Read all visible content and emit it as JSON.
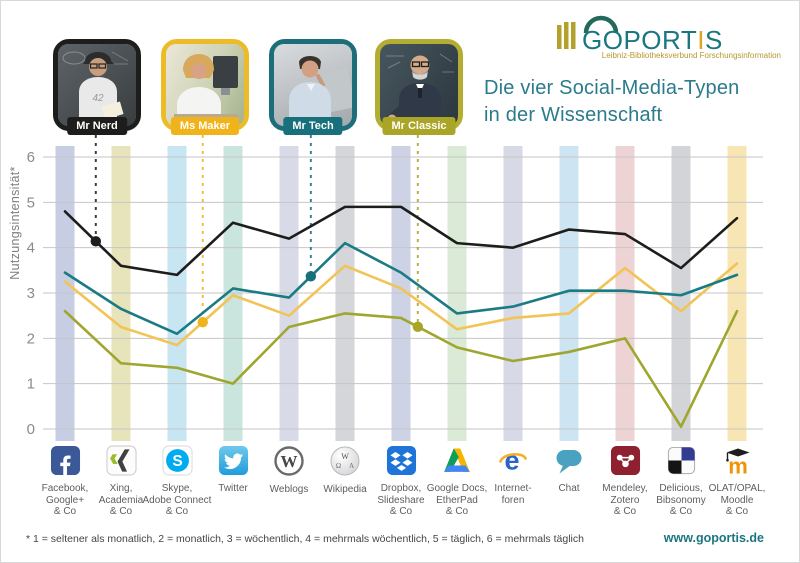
{
  "header": {
    "logo": {
      "text_pre": "GOPORT",
      "text_accent": "I",
      "text_post": "S",
      "subtitle": "Leibniz-Bibliotheksverbund Forschungsinformation",
      "teal": "#1a7680",
      "accent_yellow": "#dfa51d",
      "bar_color": "#b3a12c",
      "arc_color": "#23695c"
    },
    "title_line1": "Die vier Social-Media-Typen",
    "title_line2": "in der Wissenschaft",
    "personas": [
      {
        "name": "Mr Nerd",
        "color": "#1d1d1b",
        "frame_color": "#1d1d1b",
        "dot_x_index": 0.55
      },
      {
        "name": "Ms Maker",
        "color": "#f0b31c",
        "frame_color": "#ecbc28",
        "dot_x_index": 2.46
      },
      {
        "name": "Mr Tech",
        "color": "#17707b",
        "frame_color": "#1c6f7a",
        "dot_x_index": 4.39
      },
      {
        "name": "Mr Classic",
        "color": "#aaa526",
        "frame_color": "#b3ad31",
        "dot_x_index": 6.3
      }
    ]
  },
  "chart_data": {
    "type": "line",
    "title": "Die vier Social-Media-Typen in der Wissenschaft",
    "xlabel": "",
    "ylabel": "Nutzungsintensität*",
    "ylim": [
      0,
      6
    ],
    "yticks": [
      0,
      1,
      2,
      3,
      4,
      5,
      6
    ],
    "grid": true,
    "legend_position": "photo-tags-top",
    "categories": [
      {
        "name": "Facebook, Google+ & Co",
        "label_lines": [
          "Facebook,",
          "Google+",
          "& Co"
        ],
        "icon": "facebook",
        "band_color": "#c7cde2"
      },
      {
        "name": "Xing, Academia & Co",
        "label_lines": [
          "Xing,",
          "Academia",
          "& Co"
        ],
        "icon": "xing",
        "band_color": "#e7e3ba"
      },
      {
        "name": "Skype, Adobe Connect & Co",
        "label_lines": [
          "Skype,",
          "Adobe Connect",
          "& Co"
        ],
        "icon": "skype",
        "band_color": "#c7e6f2"
      },
      {
        "name": "Twitter",
        "label_lines": [
          "Twitter"
        ],
        "icon": "twitter",
        "band_color": "#c9e5de"
      },
      {
        "name": "Weblogs",
        "label_lines": [
          "Weblogs"
        ],
        "icon": "wordpress",
        "band_color": "#d8dae8"
      },
      {
        "name": "Wikipedia",
        "label_lines": [
          "Wikipedia"
        ],
        "icon": "wikipedia",
        "band_color": "#d5d6d9"
      },
      {
        "name": "Dropbox, Slideshare & Co",
        "label_lines": [
          "Dropbox,",
          "Slideshare",
          "& Co"
        ],
        "icon": "dropbox",
        "band_color": "#cdd3e5"
      },
      {
        "name": "Google Docs, EtherPad & Co",
        "label_lines": [
          "Google Docs,",
          "EtherPad",
          "& Co"
        ],
        "icon": "gdrive",
        "band_color": "#dbe9d7"
      },
      {
        "name": "Internetforen",
        "label_lines": [
          "Internet-",
          "foren"
        ],
        "icon": "ie",
        "band_color": "#d7d9e7"
      },
      {
        "name": "Chat",
        "label_lines": [
          "Chat"
        ],
        "icon": "chat",
        "band_color": "#cde5f3"
      },
      {
        "name": "Mendeley, Zotero & Co",
        "label_lines": [
          "Mendeley,",
          "Zotero",
          "& Co"
        ],
        "icon": "mendeley",
        "band_color": "#eed3d4"
      },
      {
        "name": "Delicious, Bibsonomy & Co",
        "label_lines": [
          "Delicious,",
          "Bibsonomy",
          "& Co"
        ],
        "icon": "delicious",
        "band_color": "#d3d4d7"
      },
      {
        "name": "OLAT/OPAL, Moodle & Co",
        "label_lines": [
          "OLAT/OPAL,",
          "Moodle",
          "& Co"
        ],
        "icon": "moodle",
        "band_color": "#f8e5b4"
      }
    ],
    "series": [
      {
        "name": "Mr Classic",
        "color": "#9fa62e",
        "values": [
          2.6,
          1.45,
          1.35,
          1.0,
          2.25,
          2.55,
          2.45,
          1.8,
          1.5,
          1.7,
          2.0,
          0.05,
          2.6
        ]
      },
      {
        "name": "Ms Maker",
        "color": "#f2c355",
        "values": [
          3.25,
          2.25,
          1.85,
          2.95,
          2.5,
          3.6,
          3.1,
          2.2,
          2.45,
          2.55,
          3.55,
          2.6,
          3.65
        ]
      },
      {
        "name": "Mr Tech",
        "color": "#1b7b84",
        "values": [
          3.45,
          2.65,
          2.1,
          3.1,
          2.9,
          4.1,
          3.45,
          2.55,
          2.7,
          3.05,
          3.05,
          2.95,
          3.4
        ]
      },
      {
        "name": "Mr Nerd",
        "color": "#1d1d1b",
        "values": [
          4.8,
          3.6,
          3.4,
          4.55,
          4.2,
          4.9,
          4.9,
          4.1,
          4.0,
          4.4,
          4.3,
          3.55,
          4.65
        ]
      }
    ]
  },
  "footer": {
    "note": "* 1 = seltener als monatlich, 2 = monatlich, 3 = wöchentlich, 4 = mehrmals wöchentlich, 5 = täglich, 6 = mehrmals täglich",
    "website": "www.goportis.de"
  }
}
